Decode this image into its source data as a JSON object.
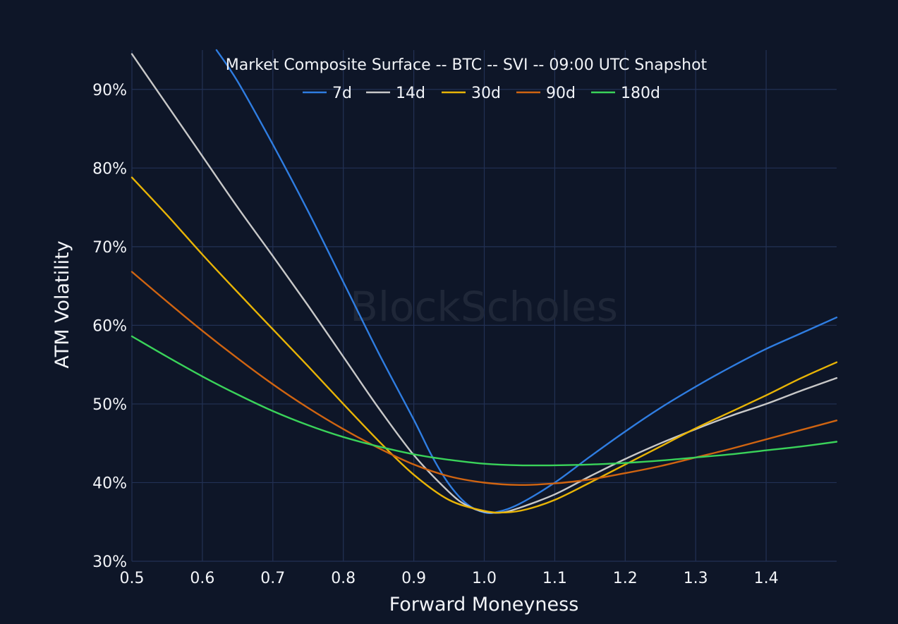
{
  "chart_data": {
    "type": "line",
    "title": "Market Composite Surface -- BTC -- SVI -- 09:00 UTC Snapshot",
    "xlabel": "Forward Moneyness",
    "ylabel": "ATM Volatility",
    "xlim": [
      0.5,
      1.5
    ],
    "ylim": [
      30,
      95
    ],
    "x_ticks": [
      "0.5",
      "0.6",
      "0.7",
      "0.8",
      "0.9",
      "1.0",
      "1.1",
      "1.2",
      "1.3",
      "1.4"
    ],
    "y_ticks": [
      "30%",
      "40%",
      "50%",
      "60%",
      "70%",
      "80%",
      "90%"
    ],
    "grid": true,
    "legend_position": "top",
    "watermark": "BlockScholes",
    "series": [
      {
        "name": "7d",
        "color": "#2f7de1",
        "points": [
          [
            0.62,
            95.0
          ],
          [
            0.65,
            91.0
          ],
          [
            0.7,
            83.0
          ],
          [
            0.75,
            74.5
          ],
          [
            0.8,
            65.5
          ],
          [
            0.85,
            56.5
          ],
          [
            0.9,
            48.0
          ],
          [
            0.925,
            43.5
          ],
          [
            0.95,
            39.8
          ],
          [
            0.975,
            37.3
          ],
          [
            1.0,
            36.2
          ],
          [
            1.02,
            36.3
          ],
          [
            1.05,
            37.3
          ],
          [
            1.1,
            40.0
          ],
          [
            1.15,
            43.3
          ],
          [
            1.2,
            46.5
          ],
          [
            1.25,
            49.5
          ],
          [
            1.3,
            52.2
          ],
          [
            1.35,
            54.7
          ],
          [
            1.4,
            57.0
          ],
          [
            1.45,
            59.0
          ],
          [
            1.5,
            61.0
          ]
        ]
      },
      {
        "name": "14d",
        "color": "#c8c8c8",
        "points": [
          [
            0.5,
            94.5
          ],
          [
            0.55,
            88.0
          ],
          [
            0.6,
            81.5
          ],
          [
            0.65,
            75.0
          ],
          [
            0.7,
            68.8
          ],
          [
            0.75,
            62.5
          ],
          [
            0.8,
            56.0
          ],
          [
            0.85,
            49.5
          ],
          [
            0.9,
            43.5
          ],
          [
            0.95,
            38.8
          ],
          [
            0.975,
            37.1
          ],
          [
            1.0,
            36.3
          ],
          [
            1.025,
            36.2
          ],
          [
            1.05,
            36.8
          ],
          [
            1.1,
            38.5
          ],
          [
            1.15,
            40.8
          ],
          [
            1.2,
            43.0
          ],
          [
            1.25,
            45.0
          ],
          [
            1.3,
            46.8
          ],
          [
            1.35,
            48.5
          ],
          [
            1.4,
            50.0
          ],
          [
            1.45,
            51.7
          ],
          [
            1.5,
            53.3
          ]
        ]
      },
      {
        "name": "30d",
        "color": "#e8b406",
        "points": [
          [
            0.5,
            78.8
          ],
          [
            0.55,
            74.0
          ],
          [
            0.6,
            69.0
          ],
          [
            0.65,
            64.2
          ],
          [
            0.7,
            59.5
          ],
          [
            0.75,
            54.8
          ],
          [
            0.8,
            50.0
          ],
          [
            0.85,
            45.3
          ],
          [
            0.9,
            41.0
          ],
          [
            0.95,
            37.8
          ],
          [
            1.0,
            36.4
          ],
          [
            1.03,
            36.2
          ],
          [
            1.06,
            36.6
          ],
          [
            1.1,
            37.8
          ],
          [
            1.15,
            40.0
          ],
          [
            1.2,
            42.3
          ],
          [
            1.25,
            44.6
          ],
          [
            1.3,
            46.9
          ],
          [
            1.35,
            49.0
          ],
          [
            1.4,
            51.1
          ],
          [
            1.45,
            53.3
          ],
          [
            1.5,
            55.3
          ]
        ]
      },
      {
        "name": "90d",
        "color": "#d06411",
        "points": [
          [
            0.5,
            66.8
          ],
          [
            0.55,
            63.0
          ],
          [
            0.6,
            59.3
          ],
          [
            0.65,
            55.8
          ],
          [
            0.7,
            52.5
          ],
          [
            0.75,
            49.5
          ],
          [
            0.8,
            46.8
          ],
          [
            0.85,
            44.4
          ],
          [
            0.9,
            42.3
          ],
          [
            0.95,
            40.8
          ],
          [
            1.0,
            40.0
          ],
          [
            1.05,
            39.7
          ],
          [
            1.1,
            39.9
          ],
          [
            1.15,
            40.4
          ],
          [
            1.2,
            41.2
          ],
          [
            1.25,
            42.1
          ],
          [
            1.3,
            43.2
          ],
          [
            1.35,
            44.3
          ],
          [
            1.4,
            45.5
          ],
          [
            1.45,
            46.7
          ],
          [
            1.5,
            47.9
          ]
        ]
      },
      {
        "name": "180d",
        "color": "#3ad35a",
        "points": [
          [
            0.5,
            58.6
          ],
          [
            0.55,
            56.0
          ],
          [
            0.6,
            53.5
          ],
          [
            0.65,
            51.2
          ],
          [
            0.7,
            49.1
          ],
          [
            0.75,
            47.3
          ],
          [
            0.8,
            45.8
          ],
          [
            0.85,
            44.6
          ],
          [
            0.9,
            43.6
          ],
          [
            0.95,
            42.9
          ],
          [
            1.0,
            42.4
          ],
          [
            1.05,
            42.2
          ],
          [
            1.1,
            42.2
          ],
          [
            1.15,
            42.3
          ],
          [
            1.2,
            42.5
          ],
          [
            1.25,
            42.8
          ],
          [
            1.3,
            43.2
          ],
          [
            1.35,
            43.6
          ],
          [
            1.4,
            44.1
          ],
          [
            1.45,
            44.6
          ],
          [
            1.5,
            45.2
          ]
        ]
      }
    ]
  }
}
